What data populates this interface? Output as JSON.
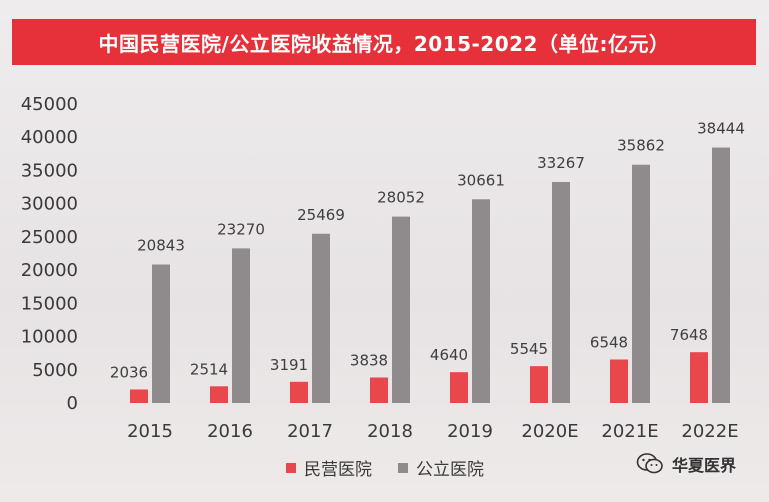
{
  "chart_data": {
    "type": "bar",
    "title": "中国民营医院/公立医院收益情况，2015-2022（单位:亿元）",
    "categories": [
      "2015",
      "2016",
      "2017",
      "2018",
      "2019",
      "2020E",
      "2021E",
      "2022E"
    ],
    "series": [
      {
        "name": "民营医院",
        "values": [
          2036,
          2514,
          3191,
          3838,
          4640,
          5545,
          6548,
          7648
        ],
        "color": "#e8474c"
      },
      {
        "name": "公立医院",
        "values": [
          20843,
          23270,
          25469,
          28052,
          30661,
          33267,
          35862,
          38444
        ],
        "color": "#8f8b8c"
      }
    ],
    "yticks": [
      "0",
      "5000",
      "10000",
      "15000",
      "20000",
      "25000",
      "30000",
      "35000",
      "40000",
      "45000"
    ],
    "ylim": [
      0,
      45000
    ],
    "grid": false,
    "legend": "bottom-center",
    "xlabel": "",
    "ylabel": ""
  },
  "watermark": {
    "text": "华夏医界",
    "icon": "wechat-icon"
  }
}
